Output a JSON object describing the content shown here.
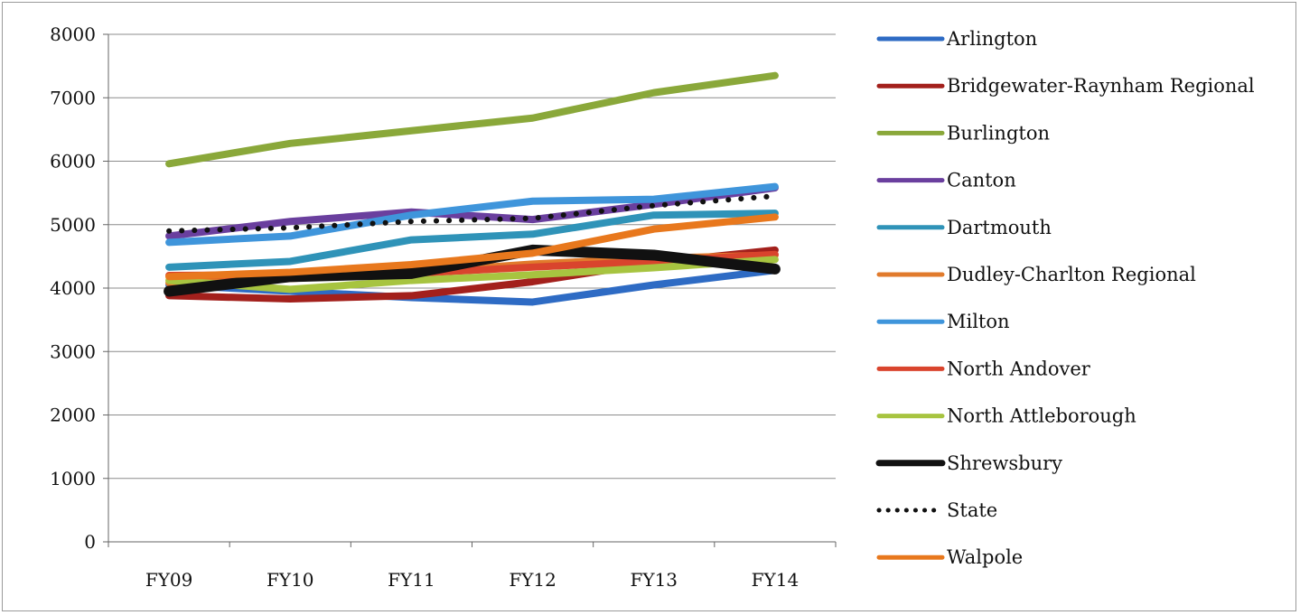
{
  "chart_data": {
    "type": "line",
    "categories": [
      "FY09",
      "FY10",
      "FY11",
      "FY12",
      "FY13",
      "FY14"
    ],
    "ylim": [
      0,
      8000
    ],
    "yticks": [
      0,
      1000,
      2000,
      3000,
      4000,
      5000,
      6000,
      7000,
      8000
    ],
    "grid": true,
    "legend_position": "right",
    "series": [
      {
        "name": "Arlington",
        "color": "#2e6bc4",
        "style": "solid",
        "values": [
          4050,
          3950,
          3850,
          3780,
          4050,
          4280
        ]
      },
      {
        "name": "Bridgewater-Raynham Regional",
        "color": "#a3201c",
        "style": "solid",
        "values": [
          3880,
          3830,
          3880,
          4100,
          4400,
          4600
        ]
      },
      {
        "name": "Burlington",
        "color": "#8aa83a",
        "style": "solid",
        "values": [
          5960,
          6280,
          6480,
          6680,
          7080,
          7350
        ]
      },
      {
        "name": "Canton",
        "color": "#6a3f9e",
        "style": "solid",
        "values": [
          4820,
          5050,
          5200,
          5080,
          5320,
          5580
        ]
      },
      {
        "name": "Dartmouth",
        "color": "#2f93b8",
        "style": "solid",
        "values": [
          4330,
          4420,
          4760,
          4850,
          5150,
          5180
        ]
      },
      {
        "name": "Dudley-Charlton Regional",
        "color": "#e17b2c",
        "style": "solid",
        "values": [
          4080,
          4150,
          4250,
          4380,
          4470,
          4520
        ]
      },
      {
        "name": "Milton",
        "color": "#3f95db",
        "style": "solid",
        "values": [
          4720,
          4820,
          5150,
          5370,
          5400,
          5600
        ]
      },
      {
        "name": "North Andover",
        "color": "#d9442d",
        "style": "solid",
        "values": [
          4200,
          4210,
          4230,
          4330,
          4420,
          4530
        ]
      },
      {
        "name": "North Attleborough",
        "color": "#a7c440",
        "style": "solid",
        "values": [
          4120,
          3980,
          4120,
          4210,
          4320,
          4450
        ]
      },
      {
        "name": "Shrewsbury",
        "color": "#111111",
        "style": "solid",
        "values": [
          3950,
          4180,
          4230,
          4600,
          4520,
          4300
        ]
      },
      {
        "name": "State",
        "color": "#111111",
        "style": "dotted",
        "values": [
          4900,
          4950,
          5050,
          5100,
          5300,
          5450
        ]
      },
      {
        "name": "Walpole",
        "color": "#e8781d",
        "style": "solid",
        "values": [
          4180,
          4250,
          4370,
          4550,
          4930,
          5120
        ]
      }
    ]
  }
}
